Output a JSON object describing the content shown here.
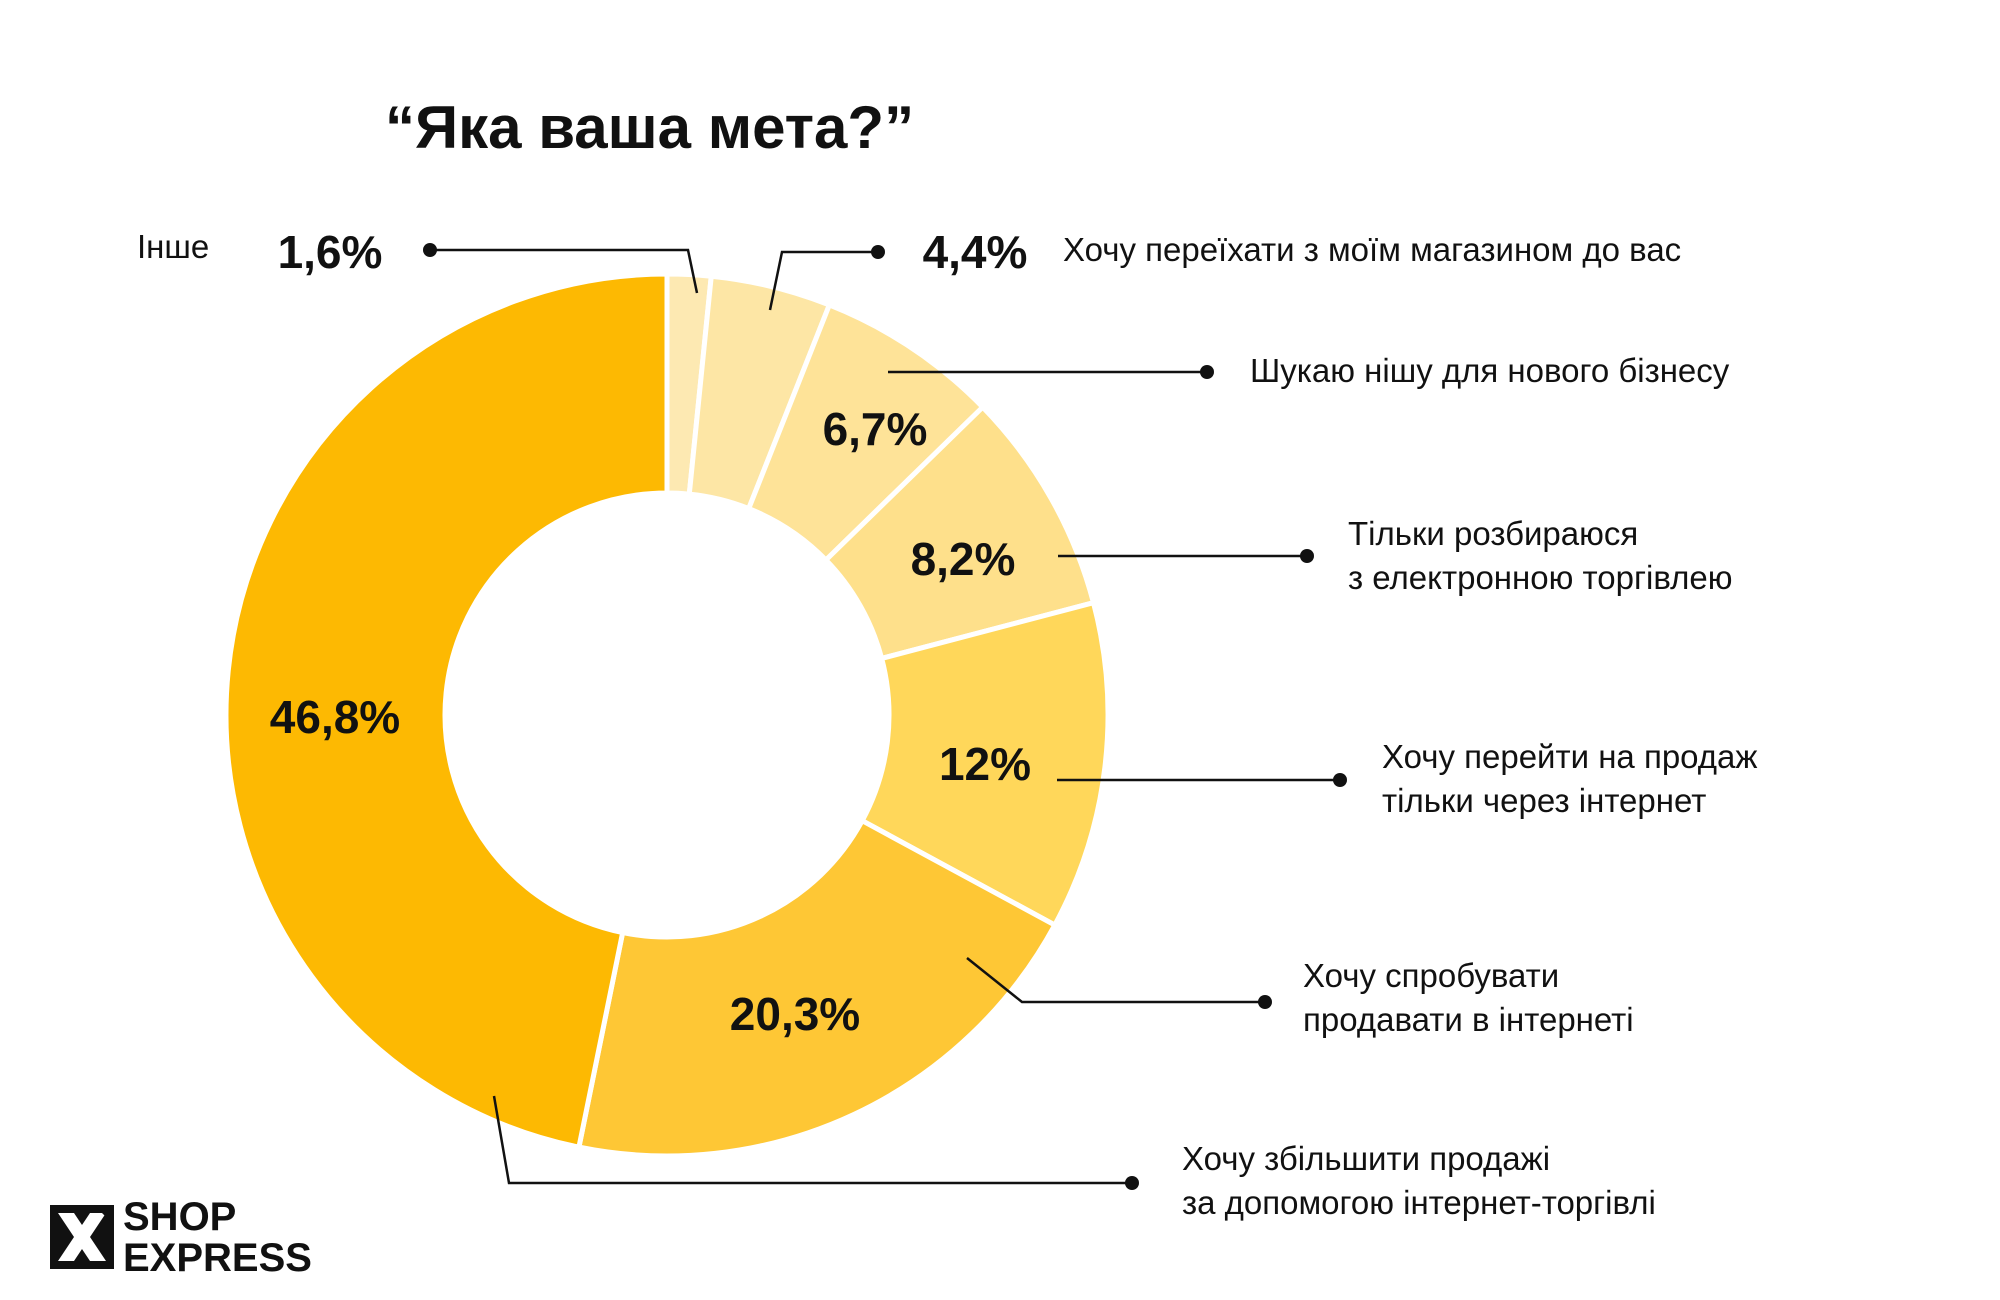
{
  "title": "“Яка ваша мета?”",
  "logo": {
    "line1": "SHOP",
    "line2": "EXPRESS"
  },
  "chart_data": {
    "type": "pie",
    "title": "“Яка ваша мета?”",
    "slices": [
      {
        "label": "Інше",
        "value": 1.6,
        "value_label": "1,6%",
        "color": "#FDE9B2"
      },
      {
        "label": "Хочу переїхати з моїм магазином до вас",
        "value": 4.4,
        "value_label": "4,4%",
        "color": "#FDE6A5"
      },
      {
        "label": "Шукаю нішу для нового бізнесу",
        "value": 6.7,
        "value_label": "6,7%",
        "color": "#FEE398"
      },
      {
        "label": "Тільки розбираюся з електронною торгівлею",
        "value": 8.2,
        "value_label": "8,2%",
        "color": "#FEE08B"
      },
      {
        "label": "Хочу перейти на продаж тільки через інтернет",
        "value": 12,
        "value_label": "12%",
        "color": "#FFD75A"
      },
      {
        "label": "Хочу спробувати продавати в інтернеті",
        "value": 20.3,
        "value_label": "20,3%",
        "color": "#FEC735"
      },
      {
        "label": "Хочу збільшити продажі за допомогою інтернет-торгівлі",
        "value": 46.8,
        "value_label": "46,8%",
        "color": "#FDB902"
      }
    ]
  }
}
